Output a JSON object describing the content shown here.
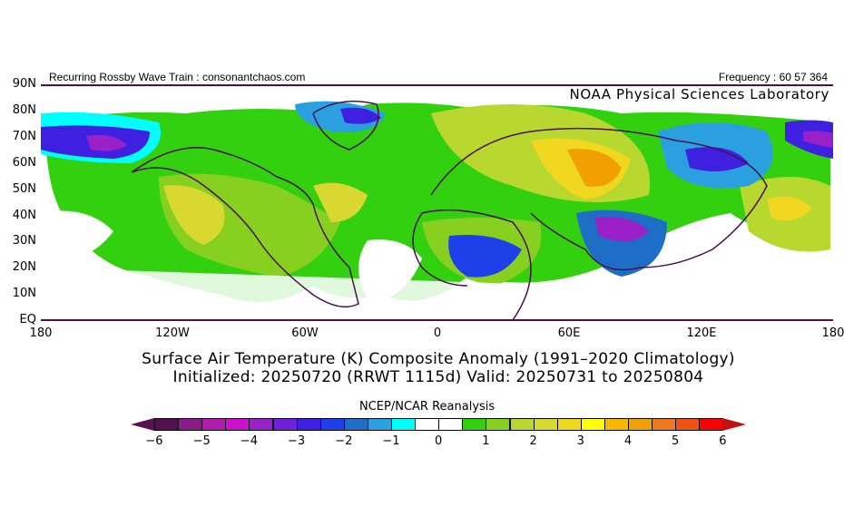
{
  "header": {
    "left": "Recurring Rossby Wave Train : consonantchaos.com",
    "right": "Frequency : 60 57 364",
    "lab": "NOAA Physical Sciences Laboratory"
  },
  "axes": {
    "lat_labels": [
      "90N",
      "80N",
      "70N",
      "60N",
      "50N",
      "40N",
      "30N",
      "20N",
      "10N",
      "EQ"
    ],
    "lon_labels": [
      "180",
      "120W",
      "60W",
      "0",
      "60E",
      "120E",
      "180"
    ]
  },
  "title": {
    "line1": "Surface Air Temperature (K) Composite Anomaly (1991–2020 Climatology)",
    "line2": "Initialized: 20250720 (RRWT 1115d) Valid: 20250731 to 20250804"
  },
  "colorbar": {
    "label": "NCEP/NCAR Reanalysis",
    "tick_labels": [
      "-6",
      "-5",
      "-4",
      "-3",
      "-2",
      "-1",
      "0",
      "1",
      "2",
      "3",
      "4",
      "5",
      "6"
    ],
    "low_color": "#5a1050",
    "high_color": "#c01010",
    "colors": [
      "#55104f",
      "#8b1a8b",
      "#b01cb0",
      "#cc10cc",
      "#9a20c8",
      "#7020d8",
      "#4020e0",
      "#1e40e8",
      "#1e6ec8",
      "#2aa0e0",
      "#00ffff",
      "#ffffff",
      "#ffffff",
      "#33d010",
      "#88d020",
      "#b8d830",
      "#d8d830",
      "#f0d820",
      "#ffff00",
      "#f8b800",
      "#f0a000",
      "#f07820",
      "#f05010",
      "#ff0000"
    ]
  }
}
